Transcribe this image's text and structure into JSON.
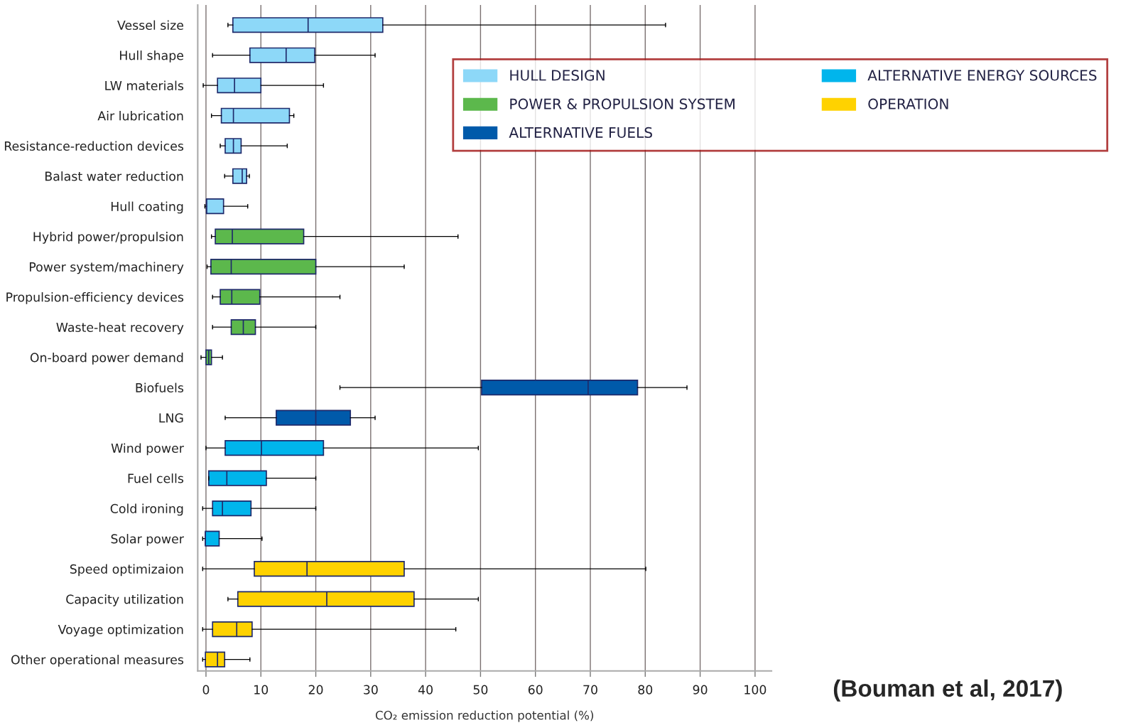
{
  "chart_data": {
    "type": "box",
    "xlabel": "CO₂ emission reduction potential (%)",
    "categories": [
      "Vessel size",
      "Hull shape",
      "LW materials",
      "Air lubrication",
      "Resistance-reduction devices",
      "Balast water reduction",
      "Hull coating",
      "Hybrid power/propulsion",
      "Power system/machinery",
      "Propulsion-efficiency devices",
      "Waste-heat recovery",
      "On-board power demand",
      "Biofuels",
      "LNG",
      "Wind power",
      "Fuel cells",
      "Cold ironing",
      "Solar power",
      "Speed optimizaion",
      "Capacity utilization",
      "Voyage optimization",
      "Other operational measures"
    ],
    "orientation": "horizontal",
    "series": [
      {
        "name": "HULL DESIGN",
        "color": "#8dd8f8",
        "boxes": [
          {
            "low": 4.0,
            "q1": 4.9,
            "median": 18.6,
            "q3": 32.2,
            "high": 83.7
          },
          {
            "low": 1.2,
            "q1": 8.0,
            "median": 14.6,
            "q3": 19.8,
            "high": 30.8
          },
          {
            "low": -0.5,
            "q1": 2.1,
            "median": 5.2,
            "q3": 10.0,
            "high": 21.4
          },
          {
            "low": 1.0,
            "q1": 2.8,
            "median": 5.0,
            "q3": 15.2,
            "high": 16.0
          },
          {
            "low": 2.6,
            "q1": 3.5,
            "median": 5.0,
            "q3": 6.4,
            "high": 14.8
          },
          {
            "low": 3.4,
            "q1": 4.9,
            "median": 6.6,
            "q3": 7.4,
            "high": 7.9
          },
          {
            "low": -0.2,
            "q1": 0.1,
            "median": 0.1,
            "q3": 3.2,
            "high": 7.6
          },
          null,
          null,
          null,
          null,
          null,
          null,
          null,
          null,
          null,
          null,
          null,
          null,
          null,
          null,
          null
        ]
      },
      {
        "name": "POWER & PROPULSION SYSTEM",
        "color": "#5cb84c",
        "boxes": [
          null,
          null,
          null,
          null,
          null,
          null,
          null,
          {
            "low": 1.0,
            "q1": 1.7,
            "median": 4.8,
            "q3": 17.8,
            "high": 45.9
          },
          {
            "low": 0.2,
            "q1": 0.9,
            "median": 4.6,
            "q3": 20.0,
            "high": 36.1
          },
          {
            "low": 1.2,
            "q1": 2.6,
            "median": 4.7,
            "q3": 9.8,
            "high": 24.4
          },
          {
            "low": 1.2,
            "q1": 4.6,
            "median": 6.8,
            "q3": 9.0,
            "high": 20.0
          },
          {
            "low": -0.9,
            "q1": 0.0,
            "median": 0.5,
            "q3": 1.0,
            "high": 3.0
          },
          null,
          null,
          null,
          null,
          null,
          null,
          null,
          null,
          null,
          null
        ]
      },
      {
        "name": "ALTERNATIVE FUELS",
        "color": "#005aaa",
        "boxes": [
          null,
          null,
          null,
          null,
          null,
          null,
          null,
          null,
          null,
          null,
          null,
          null,
          {
            "low": 24.4,
            "q1": 50.2,
            "median": 69.6,
            "q3": 78.6,
            "high": 87.6
          },
          {
            "low": 3.5,
            "q1": 12.8,
            "median": 20.0,
            "q3": 26.3,
            "high": 30.8
          },
          null,
          null,
          null,
          null,
          null,
          null,
          null,
          null
        ]
      },
      {
        "name": "ALTERNATIVE ENERGY SOURCES",
        "color": "#00b5ec",
        "boxes": [
          null,
          null,
          null,
          null,
          null,
          null,
          null,
          null,
          null,
          null,
          null,
          null,
          null,
          null,
          {
            "low": 0.0,
            "q1": 3.5,
            "median": 10.1,
            "q3": 21.4,
            "high": 49.6
          },
          {
            "low": 0.5,
            "q1": 0.5,
            "median": 3.8,
            "q3": 11.0,
            "high": 20.0
          },
          {
            "low": -0.6,
            "q1": 1.2,
            "median": 3.0,
            "q3": 8.2,
            "high": 20.0
          },
          {
            "low": -0.6,
            "q1": -0.1,
            "median": -0.1,
            "q3": 2.4,
            "high": 10.2
          },
          null,
          null,
          null,
          null
        ]
      },
      {
        "name": "OPERATION",
        "color": "#ffd200",
        "boxes": [
          null,
          null,
          null,
          null,
          null,
          null,
          null,
          null,
          null,
          null,
          null,
          null,
          null,
          null,
          null,
          null,
          null,
          null,
          {
            "low": -0.6,
            "q1": 8.8,
            "median": 18.4,
            "q3": 36.1,
            "high": 80.1
          },
          {
            "low": 4.0,
            "q1": 5.8,
            "median": 22.0,
            "q3": 37.9,
            "high": 49.6
          },
          {
            "low": -0.6,
            "q1": 1.2,
            "median": 5.6,
            "q3": 8.4,
            "high": 45.5
          },
          {
            "low": -0.6,
            "q1": -0.1,
            "median": 2.1,
            "q3": 3.4,
            "high": 8.0
          }
        ]
      }
    ],
    "xlim": [
      -1.5,
      103
    ],
    "xticks": [
      0,
      10,
      20,
      30,
      40,
      50,
      60,
      70,
      80,
      90,
      100
    ],
    "grid": "x",
    "legend": "top right",
    "annotations": [
      "(Bouman et al, 2017)"
    ]
  }
}
